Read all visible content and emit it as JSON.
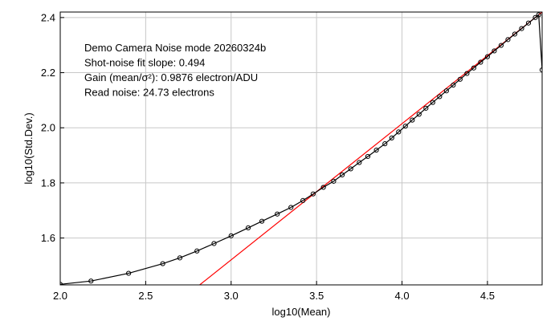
{
  "chart_data": {
    "type": "line",
    "title": "",
    "xlabel": "log10(Mean)",
    "ylabel": "log10(Std.Dev.)",
    "xlim": [
      2.0,
      4.82
    ],
    "ylim": [
      1.43,
      2.42
    ],
    "grid": true,
    "x_ticks": [
      2.0,
      2.5,
      3.0,
      3.5,
      4.0,
      4.5
    ],
    "x_tick_labels": [
      "2.0",
      "2.5",
      "3.0",
      "3.5",
      "4.0",
      "4.5"
    ],
    "y_ticks": [
      1.6,
      1.8,
      2.0,
      2.2,
      2.4
    ],
    "y_tick_labels": [
      "1.6",
      "1.8",
      "2.0",
      "2.2",
      "2.4"
    ],
    "annotations": [
      "Demo Camera Noise mode 20260324b",
      "Shot-noise fit slope: 0.494",
      "Gain (mean/σ²): 0.9876 electron/ADU",
      "Read noise: 24.73 electrons"
    ],
    "series": [
      {
        "kind": "measured",
        "color": "#000000",
        "markers": "circle",
        "points": [
          [
            2.0,
            1.432
          ],
          [
            2.18,
            1.444
          ],
          [
            2.4,
            1.472
          ],
          [
            2.6,
            1.507
          ],
          [
            2.7,
            1.528
          ],
          [
            2.8,
            1.553
          ],
          [
            2.9,
            1.58
          ],
          [
            3.0,
            1.608
          ],
          [
            3.1,
            1.637
          ],
          [
            3.18,
            1.661
          ],
          [
            3.27,
            1.687
          ],
          [
            3.35,
            1.711
          ],
          [
            3.42,
            1.736
          ],
          [
            3.48,
            1.76
          ],
          [
            3.54,
            1.784
          ],
          [
            3.6,
            1.806
          ],
          [
            3.65,
            1.829
          ],
          [
            3.7,
            1.851
          ],
          [
            3.75,
            1.874
          ],
          [
            3.8,
            1.896
          ],
          [
            3.85,
            1.919
          ],
          [
            3.9,
            1.942
          ],
          [
            3.94,
            1.963
          ],
          [
            3.98,
            1.985
          ],
          [
            4.02,
            2.006
          ],
          [
            4.06,
            2.028
          ],
          [
            4.1,
            2.049
          ],
          [
            4.14,
            2.071
          ],
          [
            4.18,
            2.092
          ],
          [
            4.22,
            2.113
          ],
          [
            4.26,
            2.134
          ],
          [
            4.3,
            2.155
          ],
          [
            4.34,
            2.176
          ],
          [
            4.38,
            2.197
          ],
          [
            4.42,
            2.217
          ],
          [
            4.46,
            2.238
          ],
          [
            4.5,
            2.258
          ],
          [
            4.54,
            2.279
          ],
          [
            4.58,
            2.299
          ],
          [
            4.62,
            2.32
          ],
          [
            4.66,
            2.34
          ],
          [
            4.7,
            2.36
          ],
          [
            4.74,
            2.38
          ],
          [
            4.78,
            2.4
          ],
          [
            4.8,
            2.41
          ],
          [
            4.82,
            2.21
          ]
        ]
      },
      {
        "kind": "shot-noise fit",
        "color": "#ff0000",
        "slope": 0.494,
        "intercept": 0.0389,
        "x_range": [
          2.8,
          4.82
        ]
      }
    ]
  }
}
